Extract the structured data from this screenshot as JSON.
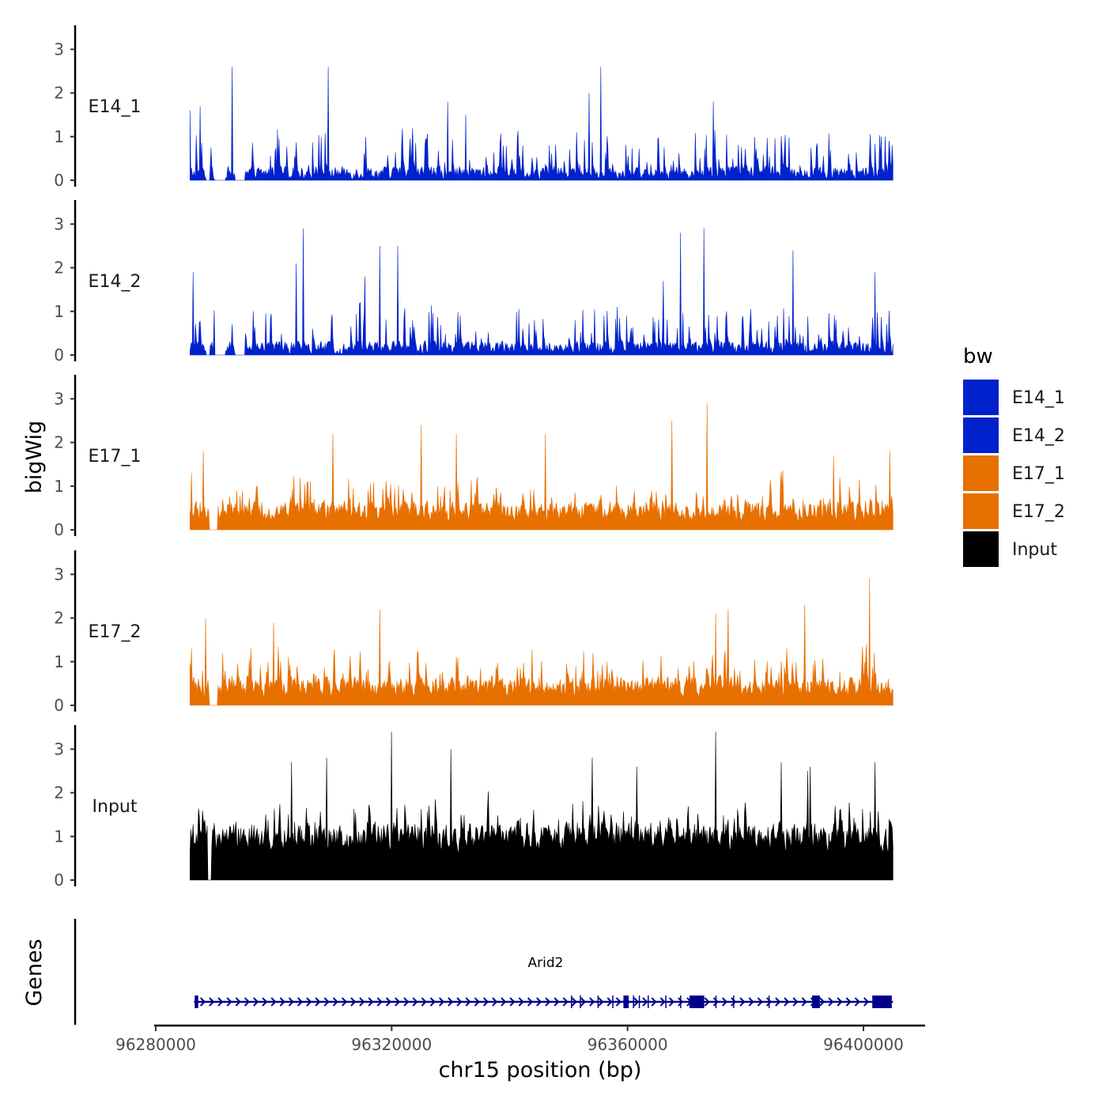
{
  "chart_data": {
    "type": "area",
    "title": "",
    "ylabel": "bigWig",
    "xlabel": "chr15 position (bp)",
    "xlim": [
      96280000,
      96405000
    ],
    "data_range": [
      96285800,
      96405000
    ],
    "x_ticks": [
      96280000,
      96320000,
      96360000,
      96400000
    ],
    "x_tick_labels": [
      "96280000",
      "96320000",
      "96360000",
      "96400000"
    ],
    "y_ticks": [
      0,
      1,
      2,
      3
    ],
    "y_tick_labels": [
      "0",
      "1",
      "2",
      "3"
    ],
    "ylim": [
      0,
      3.5
    ],
    "legend": {
      "title": "bw",
      "position": "right",
      "entries": [
        {
          "label": "E14_1",
          "color": "#0022cc"
        },
        {
          "label": "E14_2",
          "color": "#0022cc"
        },
        {
          "label": "E17_1",
          "color": "#e87000"
        },
        {
          "label": "E17_2",
          "color": "#e87000"
        },
        {
          "label": "Input",
          "color": "#000000"
        }
      ]
    },
    "series": [
      {
        "name": "E14_1",
        "color": "#0022cc",
        "peaks": [
          [
            96293000,
            2.6
          ],
          [
            96309200,
            2.6
          ],
          [
            96355500,
            2.6
          ],
          [
            96329500,
            1.8
          ],
          [
            96353500,
            2.0
          ],
          [
            96374500,
            1.8
          ],
          [
            96285800,
            1.6
          ],
          [
            96287500,
            1.7
          ],
          [
            96332500,
            1.5
          ],
          [
            96403000,
            1.0
          ]
        ]
      },
      {
        "name": "E14_2",
        "color": "#0022cc",
        "peaks": [
          [
            96305000,
            2.9
          ],
          [
            96303800,
            2.1
          ],
          [
            96318000,
            2.5
          ],
          [
            96321000,
            2.5
          ],
          [
            96369000,
            2.8
          ],
          [
            96373000,
            2.9
          ],
          [
            96388000,
            2.4
          ],
          [
            96366000,
            1.7
          ],
          [
            96315500,
            1.8
          ],
          [
            96286300,
            1.9
          ],
          [
            96402000,
            1.9
          ]
        ]
      },
      {
        "name": "E17_1",
        "color": "#e87000",
        "peaks": [
          [
            96373500,
            2.9
          ],
          [
            96367500,
            2.5
          ],
          [
            96325000,
            2.4
          ],
          [
            96331000,
            2.2
          ],
          [
            96310000,
            2.2
          ],
          [
            96346000,
            2.2
          ],
          [
            96395000,
            1.7
          ],
          [
            96404500,
            1.8
          ],
          [
            96286000,
            1.3
          ],
          [
            96288000,
            1.8
          ]
        ]
      },
      {
        "name": "E17_2",
        "color": "#e87000",
        "peaks": [
          [
            96401000,
            2.9
          ],
          [
            96318000,
            2.2
          ],
          [
            96390000,
            2.3
          ],
          [
            96377000,
            2.2
          ],
          [
            96300000,
            1.9
          ],
          [
            96375000,
            2.1
          ],
          [
            96288500,
            2.0
          ],
          [
            96286000,
            1.3
          ]
        ]
      },
      {
        "name": "Input",
        "color": "#000000",
        "peaks": [
          [
            96320000,
            3.4
          ],
          [
            96375000,
            3.4
          ],
          [
            96309000,
            2.8
          ],
          [
            96330000,
            3.0
          ],
          [
            96354000,
            2.8
          ],
          [
            96361500,
            2.6
          ],
          [
            96391000,
            2.6
          ],
          [
            96386000,
            2.7
          ],
          [
            96303000,
            2.7
          ],
          [
            96390500,
            2.5
          ],
          [
            96402000,
            2.7
          ]
        ]
      }
    ],
    "genes": {
      "label": "Genes",
      "name": "Arid2",
      "color": "#00008b",
      "strand": "+",
      "start": 96286500,
      "end": 96405000,
      "exons": [
        [
          96286600,
          96287200
        ],
        [
          96359300,
          96360200
        ],
        [
          96370500,
          96373000
        ],
        [
          96391300,
          96392600
        ],
        [
          96401500,
          96404800
        ]
      ]
    }
  }
}
